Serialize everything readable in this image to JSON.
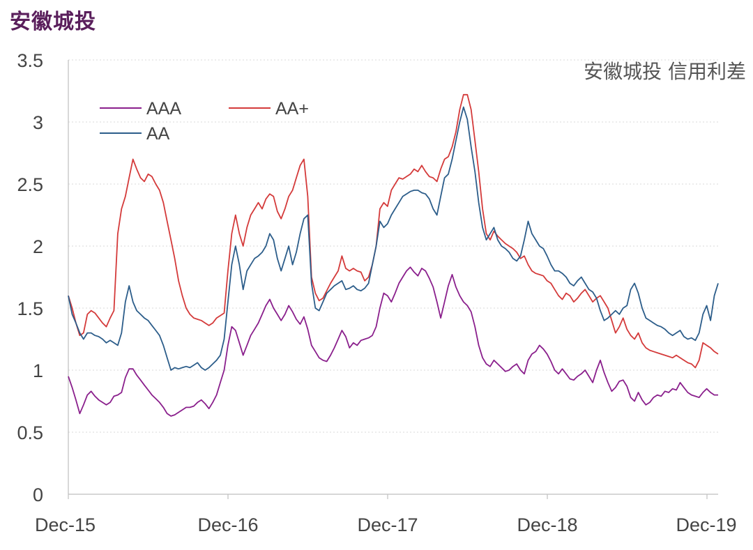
{
  "heading": "安徽城投",
  "chart_data": {
    "type": "line",
    "title": "安徽城投 信用利差",
    "xlabel": "",
    "ylabel": "",
    "x_start": "2015-12",
    "x_end": "2020-01",
    "x_ticks": [
      "Dec-15",
      "Dec-16",
      "Dec-17",
      "Dec-18",
      "Dec-19"
    ],
    "ylim": [
      0,
      3.5
    ],
    "y_ticks": [
      "0",
      "0.5",
      "1",
      "1.5",
      "2",
      "2.5",
      "3",
      "3.5"
    ],
    "grid": "horizontal-dotted",
    "legend_position": "top-left",
    "series": [
      {
        "name": "AAA",
        "color": "#8a1f8c",
        "values": [
          0.95,
          0.86,
          0.76,
          0.65,
          0.72,
          0.8,
          0.83,
          0.79,
          0.76,
          0.74,
          0.72,
          0.74,
          0.79,
          0.8,
          0.82,
          0.94,
          1.01,
          1.01,
          0.96,
          0.92,
          0.88,
          0.84,
          0.8,
          0.77,
          0.74,
          0.7,
          0.65,
          0.63,
          0.64,
          0.66,
          0.68,
          0.7,
          0.7,
          0.71,
          0.74,
          0.76,
          0.73,
          0.69,
          0.74,
          0.8,
          0.9,
          1.0,
          1.2,
          1.35,
          1.32,
          1.22,
          1.12,
          1.2,
          1.28,
          1.33,
          1.38,
          1.45,
          1.52,
          1.57,
          1.5,
          1.45,
          1.4,
          1.45,
          1.52,
          1.47,
          1.41,
          1.37,
          1.43,
          1.33,
          1.2,
          1.15,
          1.1,
          1.08,
          1.07,
          1.12,
          1.18,
          1.25,
          1.32,
          1.27,
          1.18,
          1.22,
          1.2,
          1.24,
          1.25,
          1.26,
          1.28,
          1.35,
          1.5,
          1.62,
          1.6,
          1.55,
          1.62,
          1.7,
          1.75,
          1.8,
          1.83,
          1.79,
          1.76,
          1.82,
          1.8,
          1.74,
          1.67,
          1.55,
          1.42,
          1.55,
          1.68,
          1.77,
          1.67,
          1.6,
          1.55,
          1.52,
          1.47,
          1.35,
          1.2,
          1.1,
          1.05,
          1.03,
          1.08,
          1.05,
          1.02,
          0.99,
          1.0,
          1.03,
          1.05,
          1.0,
          0.97,
          1.08,
          1.13,
          1.15,
          1.2,
          1.17,
          1.13,
          1.07,
          1.0,
          0.97,
          1.01,
          0.97,
          0.93,
          0.92,
          0.95,
          0.97,
          1.0,
          0.95,
          0.9,
          1.0,
          1.08,
          0.98,
          0.9,
          0.83,
          0.86,
          0.91,
          0.92,
          0.87,
          0.78,
          0.75,
          0.82,
          0.76,
          0.72,
          0.74,
          0.78,
          0.8,
          0.79,
          0.83,
          0.82,
          0.85,
          0.84,
          0.9,
          0.86,
          0.82,
          0.8,
          0.79,
          0.78,
          0.82,
          0.85,
          0.82,
          0.8,
          0.8
        ]
      },
      {
        "name": "AA+",
        "color": "#d43a3a",
        "values": [
          1.6,
          1.5,
          1.38,
          1.28,
          1.3,
          1.45,
          1.48,
          1.46,
          1.42,
          1.38,
          1.35,
          1.42,
          1.48,
          2.1,
          2.3,
          2.4,
          2.55,
          2.7,
          2.62,
          2.55,
          2.52,
          2.58,
          2.56,
          2.5,
          2.45,
          2.35,
          2.2,
          2.05,
          1.9,
          1.72,
          1.6,
          1.5,
          1.45,
          1.42,
          1.41,
          1.4,
          1.38,
          1.36,
          1.38,
          1.42,
          1.44,
          1.46,
          1.8,
          2.1,
          2.25,
          2.1,
          2.0,
          2.15,
          2.25,
          2.3,
          2.35,
          2.3,
          2.38,
          2.42,
          2.4,
          2.28,
          2.22,
          2.3,
          2.4,
          2.45,
          2.55,
          2.65,
          2.7,
          2.4,
          1.75,
          1.62,
          1.56,
          1.58,
          1.64,
          1.7,
          1.75,
          1.8,
          1.92,
          1.82,
          1.8,
          1.82,
          1.8,
          1.79,
          1.72,
          1.75,
          1.85,
          2.0,
          2.3,
          2.35,
          2.32,
          2.45,
          2.5,
          2.55,
          2.54,
          2.56,
          2.58,
          2.62,
          2.6,
          2.65,
          2.6,
          2.56,
          2.55,
          2.52,
          2.62,
          2.7,
          2.72,
          2.8,
          2.92,
          3.1,
          3.22,
          3.22,
          3.1,
          2.85,
          2.6,
          2.3,
          2.1,
          2.05,
          2.12,
          2.08,
          2.05,
          2.02,
          2.0,
          1.98,
          1.95,
          1.9,
          1.92,
          1.85,
          1.8,
          1.78,
          1.77,
          1.76,
          1.72,
          1.7,
          1.65,
          1.6,
          1.57,
          1.62,
          1.6,
          1.55,
          1.58,
          1.62,
          1.65,
          1.6,
          1.55,
          1.58,
          1.6,
          1.55,
          1.5,
          1.4,
          1.3,
          1.35,
          1.42,
          1.33,
          1.28,
          1.25,
          1.3,
          1.22,
          1.18,
          1.16,
          1.15,
          1.14,
          1.13,
          1.12,
          1.11,
          1.1,
          1.12,
          1.1,
          1.08,
          1.06,
          1.05,
          1.02,
          1.08,
          1.22,
          1.2,
          1.18,
          1.15,
          1.13
        ]
      },
      {
        "name": "AA",
        "color": "#2c5d8a",
        "values": [
          1.6,
          1.45,
          1.38,
          1.3,
          1.25,
          1.3,
          1.3,
          1.28,
          1.27,
          1.25,
          1.22,
          1.24,
          1.22,
          1.2,
          1.3,
          1.55,
          1.68,
          1.55,
          1.48,
          1.45,
          1.42,
          1.4,
          1.36,
          1.32,
          1.28,
          1.2,
          1.1,
          1.0,
          1.02,
          1.01,
          1.02,
          1.03,
          1.02,
          1.04,
          1.06,
          1.02,
          1.0,
          1.02,
          1.05,
          1.08,
          1.12,
          1.25,
          1.55,
          1.85,
          2.0,
          1.85,
          1.65,
          1.8,
          1.85,
          1.9,
          1.92,
          1.95,
          2.0,
          2.1,
          2.05,
          1.9,
          1.8,
          1.9,
          2.0,
          1.85,
          1.95,
          2.1,
          2.22,
          2.25,
          1.7,
          1.5,
          1.48,
          1.55,
          1.62,
          1.65,
          1.68,
          1.7,
          1.72,
          1.65,
          1.66,
          1.68,
          1.65,
          1.64,
          1.66,
          1.7,
          1.85,
          2.0,
          2.2,
          2.15,
          2.18,
          2.25,
          2.3,
          2.35,
          2.4,
          2.42,
          2.44,
          2.45,
          2.45,
          2.43,
          2.42,
          2.38,
          2.3,
          2.25,
          2.4,
          2.55,
          2.58,
          2.7,
          2.85,
          3.0,
          3.12,
          3.02,
          2.8,
          2.6,
          2.35,
          2.15,
          2.05,
          2.1,
          2.15,
          2.05,
          2.0,
          1.98,
          1.95,
          1.9,
          1.88,
          1.92,
          2.05,
          2.2,
          2.1,
          2.05,
          2.0,
          1.98,
          1.92,
          1.85,
          1.8,
          1.8,
          1.78,
          1.75,
          1.7,
          1.68,
          1.72,
          1.75,
          1.7,
          1.65,
          1.63,
          1.58,
          1.48,
          1.4,
          1.42,
          1.45,
          1.48,
          1.45,
          1.5,
          1.52,
          1.65,
          1.7,
          1.62,
          1.5,
          1.42,
          1.4,
          1.38,
          1.36,
          1.35,
          1.33,
          1.3,
          1.28,
          1.3,
          1.32,
          1.27,
          1.25,
          1.26,
          1.24,
          1.3,
          1.45,
          1.52,
          1.4,
          1.6,
          1.7
        ]
      }
    ]
  }
}
